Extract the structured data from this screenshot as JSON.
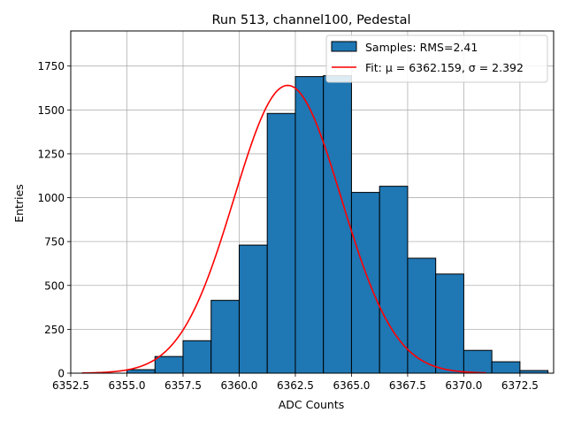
{
  "chart_data": {
    "type": "bar",
    "title": "Run 513, channel100, Pedestal",
    "xlabel": "ADC Counts",
    "ylabel": "Entries",
    "xlim": [
      6352.5,
      6374.0
    ],
    "ylim": [
      0,
      1950
    ],
    "x_ticks": [
      6352.5,
      6355.0,
      6357.5,
      6360.0,
      6362.5,
      6365.0,
      6367.5,
      6370.0,
      6372.5
    ],
    "x_tick_labels": [
      "6352.5",
      "6355.0",
      "6357.5",
      "6360.0",
      "6362.5",
      "6365.0",
      "6367.5",
      "6370.0",
      "6372.5"
    ],
    "y_ticks": [
      0,
      250,
      500,
      750,
      1000,
      1250,
      1500,
      1750
    ],
    "y_tick_labels": [
      "0",
      "250",
      "500",
      "750",
      "1000",
      "1250",
      "1500",
      "1750"
    ],
    "grid": true,
    "legend_position": "top-right",
    "series": [
      {
        "name": "Samples: RMS=2.41",
        "kind": "histogram",
        "color": "#1f77b4",
        "edge_color": "#000000",
        "bins": [
          {
            "x0": 6355.0,
            "x1": 6356.25,
            "count": 20
          },
          {
            "x0": 6356.25,
            "x1": 6357.5,
            "count": 95
          },
          {
            "x0": 6357.5,
            "x1": 6358.75,
            "count": 185
          },
          {
            "x0": 6358.75,
            "x1": 6360.0,
            "count": 415
          },
          {
            "x0": 6360.0,
            "x1": 6361.25,
            "count": 730
          },
          {
            "x0": 6361.25,
            "x1": 6362.5,
            "count": 1480
          },
          {
            "x0": 6362.5,
            "x1": 6363.75,
            "count": 1690
          },
          {
            "x0": 6363.75,
            "x1": 6365.0,
            "count": 1695
          },
          {
            "x0": 6365.0,
            "x1": 6366.25,
            "count": 1030
          },
          {
            "x0": 6366.25,
            "x1": 6367.5,
            "count": 1065
          },
          {
            "x0": 6367.5,
            "x1": 6368.75,
            "count": 655
          },
          {
            "x0": 6368.75,
            "x1": 6370.0,
            "count": 565
          },
          {
            "x0": 6370.0,
            "x1": 6371.25,
            "count": 130
          },
          {
            "x0": 6371.25,
            "x1": 6372.5,
            "count": 65
          },
          {
            "x0": 6372.5,
            "x1": 6373.75,
            "count": 15
          }
        ]
      },
      {
        "name": "Fit: μ = 6362.159, σ = 2.392",
        "kind": "gaussian-fit",
        "color": "#ff0000",
        "mu": 6362.159,
        "sigma": 2.392,
        "peak": 1640,
        "x_range": [
          6353.0,
          6371.0
        ]
      }
    ]
  }
}
